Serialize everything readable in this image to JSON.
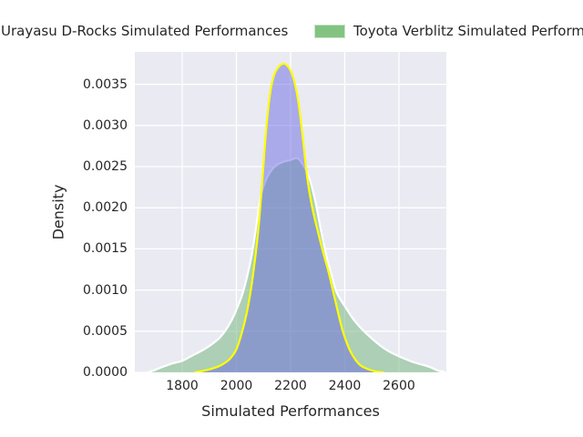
{
  "figure": {
    "background": "#ffffff",
    "axes_background": "#eaeaf2",
    "grid_color": "#ffffff",
    "text_color": "#262626"
  },
  "legend": {
    "entries": [
      {
        "label": "Urayasu D-Rocks Simulated Performances",
        "swatch_color": "#a3a0ea",
        "swatch_border": "#ffff00"
      },
      {
        "label": "Toyota Verblitz Simulated Performances",
        "swatch_color": "#82c382",
        "swatch_border": "#c9e5c9"
      }
    ]
  },
  "chart_data": {
    "type": "area",
    "subtype": "kde-density",
    "title": "",
    "xlabel": "Simulated Performances",
    "ylabel": "Density",
    "xlim": [
      1625,
      2775
    ],
    "ylim": [
      0,
      0.003894
    ],
    "grid": true,
    "legend_position": "above-top-center",
    "xticks": {
      "values": [
        1800,
        2000,
        2200,
        2400,
        2600
      ],
      "labels": [
        "1800",
        "2000",
        "2200",
        "2400",
        "2600"
      ]
    },
    "yticks": {
      "values": [
        0,
        0.0005,
        0.001,
        0.0015,
        0.002,
        0.0025,
        0.003,
        0.0035
      ],
      "labels": [
        "0.0000",
        "0.0005",
        "0.0010",
        "0.0015",
        "0.0020",
        "0.0025",
        "0.0030",
        "0.0035"
      ]
    },
    "series": [
      {
        "name": "Toyota Verblitz Simulated Performances",
        "z": 1,
        "fill": "rgba(110,180,120,0.5)",
        "edge": "#ffffff",
        "edge_width": 2.2,
        "peak": {
          "x": 2226,
          "density": 0.0026
        },
        "points": [
          [
            1672,
            0
          ],
          [
            1700,
            3e-05
          ],
          [
            1730,
            7e-05
          ],
          [
            1765,
            0.00011
          ],
          [
            1800,
            0.00014
          ],
          [
            1835,
            0.0002
          ],
          [
            1870,
            0.00026
          ],
          [
            1900,
            0.00032
          ],
          [
            1935,
            0.00041
          ],
          [
            1960,
            0.00051
          ],
          [
            1985,
            0.00065
          ],
          [
            2005,
            0.0008
          ],
          [
            2022,
            0.00095
          ],
          [
            2040,
            0.00117
          ],
          [
            2056,
            0.00142
          ],
          [
            2070,
            0.0017
          ],
          [
            2085,
            0.00205
          ],
          [
            2100,
            0.00226
          ],
          [
            2120,
            0.00241
          ],
          [
            2145,
            0.00251
          ],
          [
            2175,
            0.00256
          ],
          [
            2200,
            0.00258
          ],
          [
            2226,
            0.0026
          ],
          [
            2250,
            0.0025
          ],
          [
            2270,
            0.00235
          ],
          [
            2290,
            0.0021
          ],
          [
            2305,
            0.00185
          ],
          [
            2320,
            0.0016
          ],
          [
            2335,
            0.00138
          ],
          [
            2350,
            0.0012
          ],
          [
            2370,
            0.00097
          ],
          [
            2405,
            0.00078
          ],
          [
            2440,
            0.00061
          ],
          [
            2490,
            0.00044
          ],
          [
            2555,
            0.00027
          ],
          [
            2640,
            0.00014
          ],
          [
            2710,
            7e-05
          ],
          [
            2745,
            2e-05
          ],
          [
            2768,
            1e-05
          ]
        ]
      },
      {
        "name": "Urayasu D-Rocks Simulated Performances",
        "z": 2,
        "fill": "rgba(105,105,225,0.5)",
        "edge": "#ffff00",
        "edge_width": 2.2,
        "peak": {
          "x": 2175,
          "density": 0.00375
        },
        "points": [
          [
            1845,
            0
          ],
          [
            1880,
            2e-05
          ],
          [
            1915,
            5e-05
          ],
          [
            1945,
            9e-05
          ],
          [
            1975,
            0.00016
          ],
          [
            2000,
            0.00028
          ],
          [
            2020,
            0.00048
          ],
          [
            2040,
            0.00075
          ],
          [
            2060,
            0.00115
          ],
          [
            2080,
            0.0017
          ],
          [
            2095,
            0.0023
          ],
          [
            2110,
            0.00295
          ],
          [
            2125,
            0.0034
          ],
          [
            2140,
            0.00362
          ],
          [
            2158,
            0.00372
          ],
          [
            2175,
            0.00375
          ],
          [
            2192,
            0.00371
          ],
          [
            2210,
            0.00358
          ],
          [
            2228,
            0.0033
          ],
          [
            2245,
            0.00285
          ],
          [
            2262,
            0.00235
          ],
          [
            2280,
            0.002
          ],
          [
            2300,
            0.00172
          ],
          [
            2320,
            0.00146
          ],
          [
            2340,
            0.00122
          ],
          [
            2360,
            0.00094
          ],
          [
            2375,
            0.00073
          ],
          [
            2390,
            0.00053
          ],
          [
            2405,
            0.00038
          ],
          [
            2420,
            0.00026
          ],
          [
            2440,
            0.00015
          ],
          [
            2460,
            8e-05
          ],
          [
            2485,
            4e-05
          ],
          [
            2515,
            1e-05
          ],
          [
            2545,
            0
          ]
        ]
      }
    ]
  }
}
